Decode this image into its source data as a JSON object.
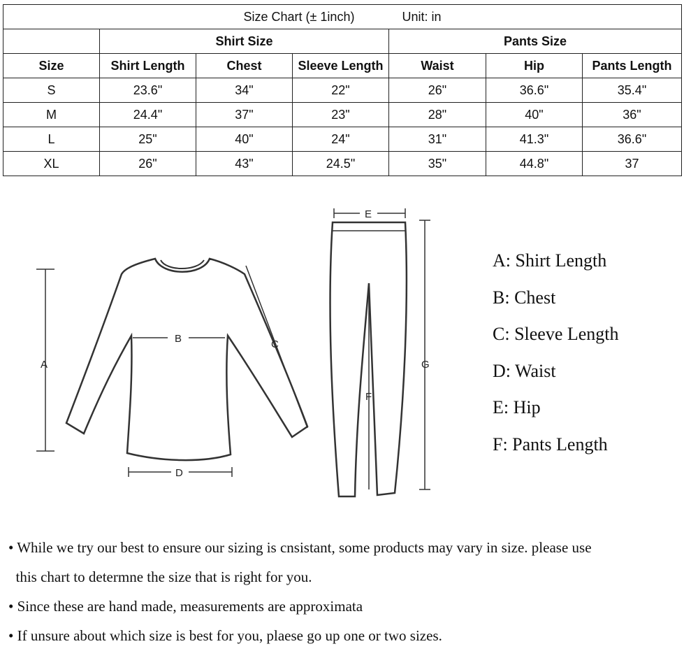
{
  "table": {
    "title": "Size Chart (± 1inch)",
    "unit": "Unit: in",
    "groups": {
      "shirt": "Shirt Size",
      "pants": "Pants Size"
    },
    "headers": [
      "Size",
      "Shirt Length",
      "Chest",
      "Sleeve Length",
      "Waist",
      "Hip",
      "Pants Length"
    ],
    "rows": [
      [
        "S",
        "23.6\"",
        "34\"",
        "22\"",
        "26\"",
        "36.6\"",
        "35.4\""
      ],
      [
        "M",
        "24.4\"",
        "37\"",
        "23\"",
        "28\"",
        "40\"",
        "36\""
      ],
      [
        "L",
        "25\"",
        "40\"",
        "24\"",
        "31\"",
        "41.3\"",
        "36.6\""
      ],
      [
        "XL",
        "26\"",
        "43\"",
        "24.5\"",
        "35\"",
        "44.8\"",
        "37"
      ]
    ]
  },
  "diagram": {
    "labels": {
      "a": "A",
      "b": "B",
      "c": "C",
      "d": "D",
      "e": "E",
      "f": "F",
      "g": "G"
    },
    "legend": [
      "A: Shirt Length",
      "B: Chest",
      "C: Sleeve Length",
      "D: Waist",
      "E: Hip",
      "F: Pants Length"
    ]
  },
  "notes": [
    "• While we try our best to ensure our sizing is cnsistant, some products may vary in size. please use",
    "  this chart to determne the size that is right for you.",
    "• Since these are hand made, measurements are approximata",
    "• If unsure about which size is best for you, plaese go up one or two sizes."
  ]
}
